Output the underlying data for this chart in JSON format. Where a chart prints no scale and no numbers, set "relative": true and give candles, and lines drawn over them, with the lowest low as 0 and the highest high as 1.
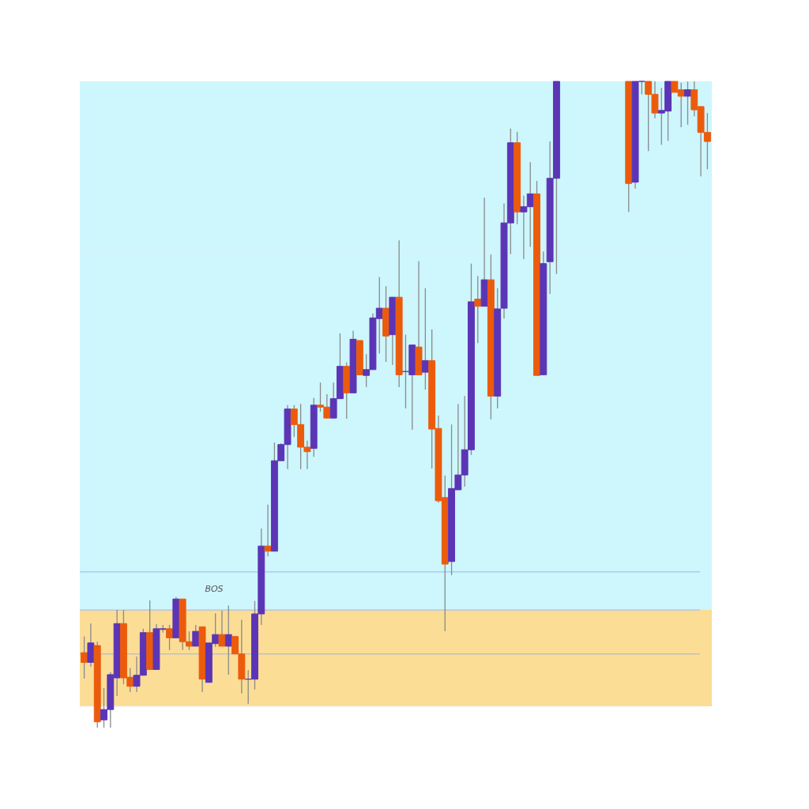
{
  "chart_data": {
    "type": "candlestick",
    "relative": true,
    "categories": [
      null,
      null,
      null,
      null,
      null,
      null,
      null,
      null,
      null,
      null,
      null,
      null,
      null,
      null,
      null,
      null,
      null,
      null,
      null,
      null,
      null,
      null,
      null,
      null,
      null,
      null,
      null,
      null,
      null,
      null,
      null,
      null,
      null,
      null,
      null,
      null,
      null,
      null,
      null,
      null,
      null,
      null,
      null,
      null,
      null,
      null,
      null,
      null,
      null,
      null,
      null,
      null,
      null,
      null,
      null,
      null,
      null,
      null,
      null,
      null,
      null,
      null,
      null,
      null,
      null,
      null,
      null,
      null,
      null,
      null,
      null,
      null,
      null,
      null,
      null,
      null,
      null,
      null,
      null,
      null,
      null,
      null,
      null,
      null,
      null,
      null,
      null,
      null,
      null,
      null,
      null,
      null,
      null,
      null,
      null,
      null
    ],
    "ohlc": [
      [
        0.116,
        0.141,
        0.076,
        0.101
      ],
      [
        0.101,
        0.161,
        0.094,
        0.131
      ],
      [
        0.127,
        0.133,
        0,
        0.009
      ],
      [
        0.012,
        0.061,
        0,
        0.028
      ],
      [
        0.028,
        0.086,
        0,
        0.082
      ],
      [
        0.077,
        0.182,
        0.049,
        0.161
      ],
      [
        0.161,
        0.182,
        0.067,
        0.077
      ],
      [
        0.078,
        0.092,
        0.055,
        0.064
      ],
      [
        0.064,
        0.11,
        0.055,
        0.081
      ],
      [
        0.081,
        0.153,
        0.081,
        0.147
      ],
      [
        0.147,
        0.197,
        0.09,
        0.09
      ],
      [
        0.09,
        0.16,
        0.09,
        0.153
      ],
      [
        0.152,
        0.159,
        0.147,
        0.153
      ],
      [
        0.153,
        0.159,
        0.12,
        0.139
      ],
      [
        0.139,
        0.202,
        0.139,
        0.199
      ],
      [
        0.199,
        0.199,
        0.12,
        0.133
      ],
      [
        0.133,
        0.149,
        0.12,
        0.126
      ],
      [
        0.126,
        0.159,
        0.126,
        0.149
      ],
      [
        0.156,
        0.156,
        0.055,
        0.075
      ],
      [
        0.07,
        0.131,
        0.07,
        0.131
      ],
      [
        0.13,
        0.177,
        0.125,
        0.144
      ],
      [
        0.144,
        0.181,
        0.126,
        0.126
      ],
      [
        0.126,
        0.189,
        0.082,
        0.144
      ],
      [
        0.141,
        0.141,
        0.114,
        0.114
      ],
      [
        0.114,
        0.167,
        0.053,
        0.075
      ],
      [
        0.075,
        0.089,
        0.037,
        0.075
      ],
      [
        0.075,
        0.196,
        0.059,
        0.176
      ],
      [
        0.176,
        0.308,
        0.159,
        0.281
      ],
      [
        0.281,
        0.345,
        0.265,
        0.273
      ],
      [
        0.273,
        0.441,
        0.273,
        0.413
      ],
      [
        0.413,
        0.44,
        0.413,
        0.438
      ],
      [
        0.438,
        0.499,
        0.4,
        0.493
      ],
      [
        0.493,
        0.499,
        0.45,
        0.469
      ],
      [
        0.469,
        0.501,
        0.4,
        0.434
      ],
      [
        0.434,
        0.444,
        0.4,
        0.427
      ],
      [
        0.432,
        0.51,
        0.419,
        0.499
      ],
      [
        0.499,
        0.534,
        0.489,
        0.496
      ],
      [
        0.496,
        0.516,
        0.479,
        0.479
      ],
      [
        0.479,
        0.534,
        0.479,
        0.509
      ],
      [
        0.509,
        0.61,
        0.509,
        0.559
      ],
      [
        0.559,
        0.565,
        0.478,
        0.518
      ],
      [
        0.518,
        0.614,
        0.518,
        0.601
      ],
      [
        0.599,
        0.599,
        0.546,
        0.546
      ],
      [
        0.545,
        0.578,
        0.527,
        0.554
      ],
      [
        0.554,
        0.641,
        0.554,
        0.634
      ],
      [
        0.633,
        0.697,
        0.579,
        0.649
      ],
      [
        0.649,
        0.683,
        0.566,
        0.606
      ],
      [
        0.608,
        0.666,
        0.561,
        0.666
      ],
      [
        0.666,
        0.754,
        0.527,
        0.546
      ],
      [
        0.551,
        0.608,
        0.494,
        0.551
      ],
      [
        0.546,
        0.593,
        0.461,
        0.592
      ],
      [
        0.589,
        0.722,
        0.546,
        0.546
      ],
      [
        0.55,
        0.68,
        0.523,
        0.568
      ],
      [
        0.568,
        0.616,
        0.401,
        0.462
      ],
      [
        0.463,
        0.483,
        0.348,
        0.351
      ],
      [
        0.356,
        0.39,
        0.149,
        0.253
      ],
      [
        0.257,
        0.469,
        0.236,
        0.37
      ],
      [
        0.368,
        0.501,
        0.368,
        0.391
      ],
      [
        0.391,
        0.513,
        0.373,
        0.43
      ],
      [
        0.43,
        0.718,
        0.422,
        0.659
      ],
      [
        0.663,
        0.699,
        0.595,
        0.652
      ],
      [
        0.652,
        0.82,
        0.652,
        0.693
      ],
      [
        0.693,
        0.732,
        0.477,
        0.513
      ],
      [
        0.513,
        0.68,
        0.494,
        0.648
      ],
      [
        0.649,
        0.811,
        0.633,
        0.781
      ],
      [
        0.781,
        0.927,
        0.733,
        0.905
      ],
      [
        0.905,
        0.922,
        0.779,
        0.798
      ],
      [
        0.798,
        0.823,
        0.725,
        0.806
      ],
      [
        0.806,
        0.875,
        0.744,
        0.826
      ],
      [
        0.826,
        0.846,
        0.545,
        0.545
      ],
      [
        0.546,
        0.737,
        0.546,
        0.718
      ],
      [
        0.721,
        0.907,
        0.671,
        0.85
      ],
      [
        0.85,
        1,
        0.702,
        1
      ],
      null,
      null,
      null,
      null,
      null,
      null,
      null,
      null,
      null,
      null,
      [
        1,
        1,
        0.798,
        0.842
      ],
      [
        0.844,
        1,
        0.834,
        1
      ],
      [
        1,
        1,
        0.98,
        1
      ],
      [
        1,
        1,
        0.892,
        0.98
      ],
      [
        0.98,
        1,
        0.943,
        0.951
      ],
      [
        0.951,
        0.99,
        0.902,
        0.955
      ],
      [
        0.954,
        1,
        0.908,
        1
      ],
      [
        1,
        1,
        0.983,
        0.983
      ],
      [
        0.987,
        0.998,
        0.929,
        0.977
      ],
      [
        0.977,
        1,
        0.933,
        0.987
      ],
      [
        0.987,
        1,
        0.946,
        0.956
      ],
      [
        0.961,
        0.961,
        0.853,
        0.921
      ],
      [
        0.921,
        0.951,
        0.864,
        0.907
      ]
    ],
    "colors": [
      "#ec5b0c",
      "#5b35b5",
      "#ec5b0c",
      "#5b35b5",
      "#5b35b5",
      "#5b35b5",
      "#ec5b0c",
      "#ec5b0c",
      "#5b35b5",
      "#5b35b5",
      "#ec5b0c",
      "#5b35b5",
      "#5b35b5",
      "#ec5b0c",
      "#5b35b5",
      "#ec5b0c",
      "#ec5b0c",
      "#5b35b5",
      "#ec5b0c",
      "#5b35b5",
      "#5b35b5",
      "#ec5b0c",
      "#5b35b5",
      "#ec5b0c",
      "#ec5b0c",
      "#5b35b5",
      "#5b35b5",
      "#5b35b5",
      "#ec5b0c",
      "#5b35b5",
      "#5b35b5",
      "#5b35b5",
      "#ec5b0c",
      "#ec5b0c",
      "#ec5b0c",
      "#5b35b5",
      "#ec5b0c",
      "#ec5b0c",
      "#5b35b5",
      "#5b35b5",
      "#ec5b0c",
      "#5b35b5",
      "#ec5b0c",
      "#5b35b5",
      "#5b35b5",
      "#5b35b5",
      "#ec5b0c",
      "#5b35b5",
      "#ec5b0c",
      "#5b35b5",
      "#5b35b5",
      "#ec5b0c",
      "#5b35b5",
      "#ec5b0c",
      "#ec5b0c",
      "#ec5b0c",
      "#5b35b5",
      "#5b35b5",
      "#5b35b5",
      "#5b35b5",
      "#ec5b0c",
      "#5b35b5",
      "#ec5b0c",
      "#5b35b5",
      "#5b35b5",
      "#5b35b5",
      "#ec5b0c",
      "#5b35b5",
      "#5b35b5",
      "#ec5b0c",
      "#5b35b5",
      "#5b35b5",
      "#5b35b5",
      null,
      null,
      null,
      null,
      null,
      null,
      null,
      null,
      null,
      null,
      "#ec5b0c",
      "#5b35b5",
      "#5b35b5",
      "#ec5b0c",
      "#ec5b0c",
      "#5b35b5",
      "#5b35b5",
      "#ec5b0c",
      "#ec5b0c",
      "#5b35b5",
      "#ec5b0c",
      "#ec5b0c",
      "#ec5b0c"
    ],
    "bands": [
      {
        "axis": "y",
        "from": 0.182,
        "to": 1,
        "color": "#cdf6fd"
      },
      {
        "axis": "y",
        "from": 0.033,
        "to": 0.182,
        "color": "#fbdd96"
      }
    ],
    "ref_lines": [
      {
        "axis": "y",
        "value": 0.737,
        "color": "#eeeeee"
      },
      {
        "axis": "y",
        "value": 0.241,
        "color": "#9db4ea"
      },
      {
        "axis": "y",
        "value": 0.182,
        "color": "#9db4ea"
      },
      {
        "axis": "y",
        "value": 0.114,
        "color": "#9db4ea"
      },
      {
        "axis": "y",
        "value": 0.033,
        "color": "#eeeeee"
      }
    ],
    "annotations": [
      "BOS"
    ]
  }
}
